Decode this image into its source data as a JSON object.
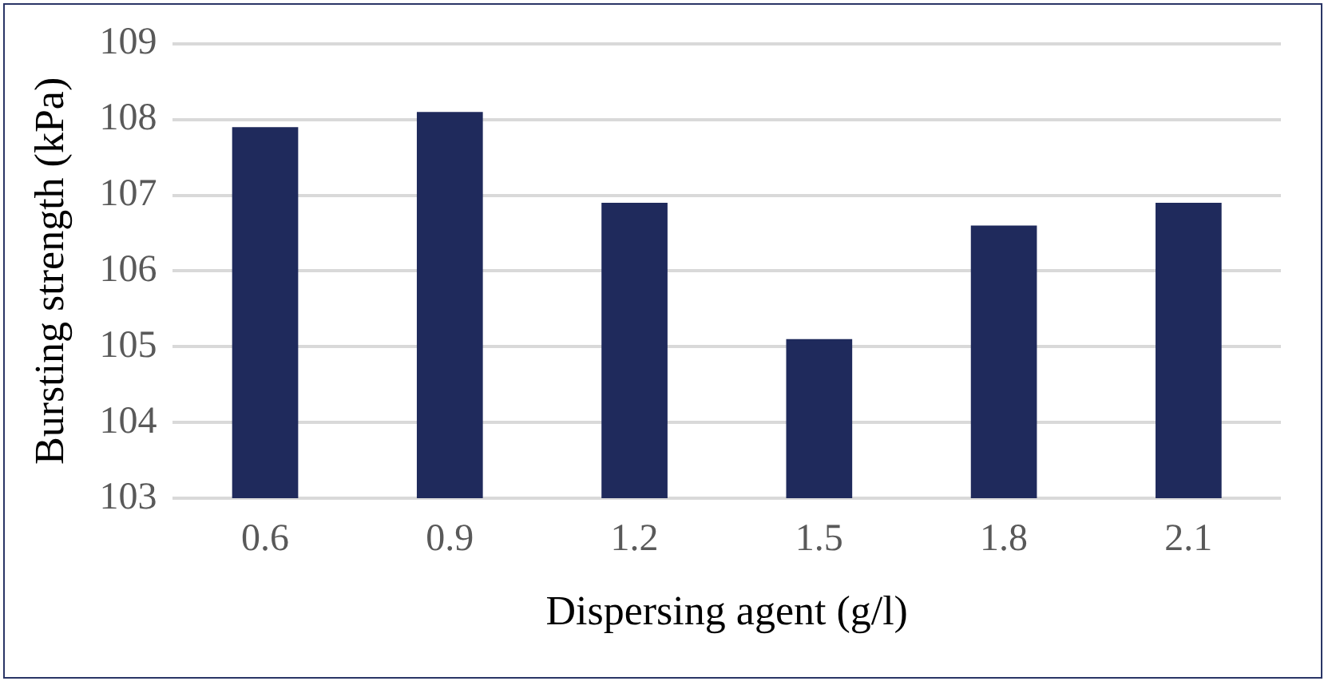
{
  "chart_data": {
    "type": "bar",
    "xlabel": "Dispersing agent (g/l)",
    "ylabel": "Bursting strength (kPa)",
    "categories": [
      "0.6",
      "0.9",
      "1.2",
      "1.5",
      "1.8",
      "2.1"
    ],
    "values": [
      107.9,
      108.1,
      106.9,
      105.1,
      106.6,
      106.9
    ],
    "color": "#1f2a5c",
    "ylim": [
      103,
      109
    ],
    "yticks": [
      103,
      104,
      105,
      106,
      107,
      108,
      109
    ],
    "grid": "y"
  }
}
